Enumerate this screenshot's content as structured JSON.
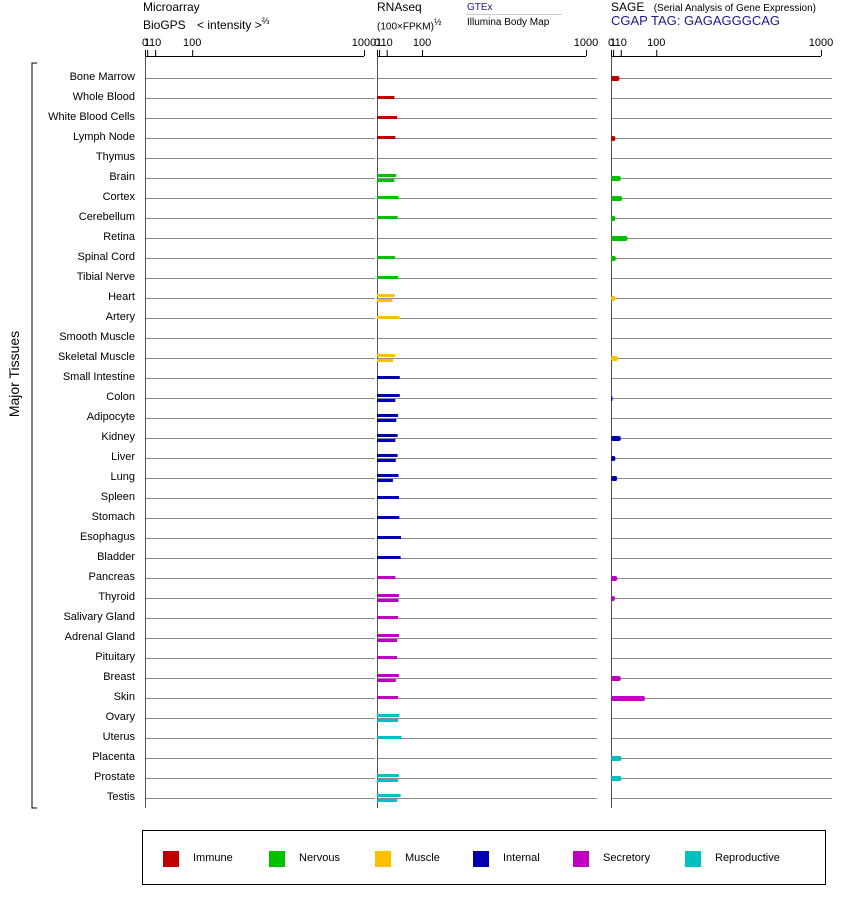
{
  "headers": {
    "microarray": {
      "line1": "Microarray",
      "line2_left": "BioGPS",
      "line2_right": "< intensity >",
      "exponent": "⅔"
    },
    "rnaseq": {
      "line1": "RNAseq",
      "line2": "(100×FPKM)",
      "exponent": "½",
      "source_link": "GTEx",
      "source_sub": "Illumina Body Map"
    },
    "sage": {
      "line1": "SAGE",
      "line1_note": "(Serial Analysis of Gene Expression)",
      "tag_label": "CGAP TAG: GAGAGGGCAG"
    }
  },
  "ticks": [
    "0",
    "1",
    "10",
    "100",
    "1000"
  ],
  "y_axis_label": "Major Tissues",
  "legend": [
    {
      "name": "Immune",
      "color": "#c00000"
    },
    {
      "name": "Nervous",
      "color": "#00c000"
    },
    {
      "name": "Muscle",
      "color": "#ffc000"
    },
    {
      "name": "Internal",
      "color": "#0000b0"
    },
    {
      "name": "Secretory",
      "color": "#c000c0"
    },
    {
      "name": "Reproductive",
      "color": "#00c0c0"
    }
  ],
  "chart_data": {
    "type": "bar",
    "scale": "power",
    "x_ticks": [
      0,
      1,
      10,
      100,
      1000
    ],
    "xlim": [
      0,
      1000
    ],
    "categories": [
      "Bone Marrow",
      "Whole Blood",
      "White Blood Cells",
      "Lymph Node",
      "Thymus",
      "Brain",
      "Cortex",
      "Cerebellum",
      "Retina",
      "Spinal Cord",
      "Tibial Nerve",
      "Heart",
      "Artery",
      "Smooth Muscle",
      "Skeletal Muscle",
      "Small Intestine",
      "Colon",
      "Adipocyte",
      "Kidney",
      "Liver",
      "Lung",
      "Spleen",
      "Stomach",
      "Esophagus",
      "Bladder",
      "Pancreas",
      "Thyroid",
      "Salivary Gland",
      "Adrenal Gland",
      "Pituitary",
      "Breast",
      "Skin",
      "Ovary",
      "Uterus",
      "Placenta",
      "Prostate",
      "Testis"
    ],
    "groups": [
      "Immune",
      "Immune",
      "Immune",
      "Immune",
      "Immune",
      "Nervous",
      "Nervous",
      "Nervous",
      "Nervous",
      "Nervous",
      "Nervous",
      "Muscle",
      "Muscle",
      "Muscle",
      "Muscle",
      "Internal",
      "Internal",
      "Internal",
      "Internal",
      "Internal",
      "Internal",
      "Internal",
      "Internal",
      "Internal",
      "Internal",
      "Secretory",
      "Secretory",
      "Secretory",
      "Secretory",
      "Secretory",
      "Secretory",
      "Secretory",
      "Reproductive",
      "Reproductive",
      "Reproductive",
      "Reproductive",
      "Reproductive"
    ],
    "series": [
      {
        "name": "Microarray",
        "values": [
          null,
          null,
          null,
          null,
          null,
          null,
          null,
          null,
          null,
          null,
          null,
          null,
          null,
          null,
          null,
          null,
          null,
          null,
          null,
          null,
          null,
          null,
          null,
          null,
          null,
          null,
          null,
          null,
          null,
          null,
          null,
          null,
          null,
          null,
          null,
          null,
          null
        ]
      },
      {
        "name": "GTEx",
        "values": [
          null,
          24,
          30,
          null,
          null,
          28,
          33,
          31,
          null,
          25,
          32,
          25,
          35,
          null,
          26,
          36,
          36,
          32,
          31,
          31,
          33,
          34,
          35,
          39,
          38,
          null,
          34,
          32,
          34,
          30,
          34,
          32,
          35,
          40,
          null,
          34,
          38
        ]
      },
      {
        "name": "Illumina Body Map",
        "values": [
          null,
          null,
          null,
          26,
          null,
          24,
          null,
          null,
          null,
          null,
          null,
          20,
          null,
          null,
          21,
          null,
          26,
          28,
          26,
          27,
          21,
          null,
          null,
          null,
          null,
          26,
          33,
          null,
          30,
          null,
          27,
          null,
          32,
          null,
          null,
          32,
          30
        ]
      },
      {
        "name": "SAGE",
        "values": [
          8,
          null,
          null,
          3,
          null,
          10,
          12,
          3,
          22,
          3.5,
          null,
          3,
          null,
          null,
          6,
          null,
          0,
          null,
          10,
          3,
          5,
          null,
          null,
          null,
          null,
          5,
          2.5,
          null,
          null,
          null,
          10,
          65,
          null,
          null,
          11,
          11,
          null
        ]
      }
    ]
  }
}
